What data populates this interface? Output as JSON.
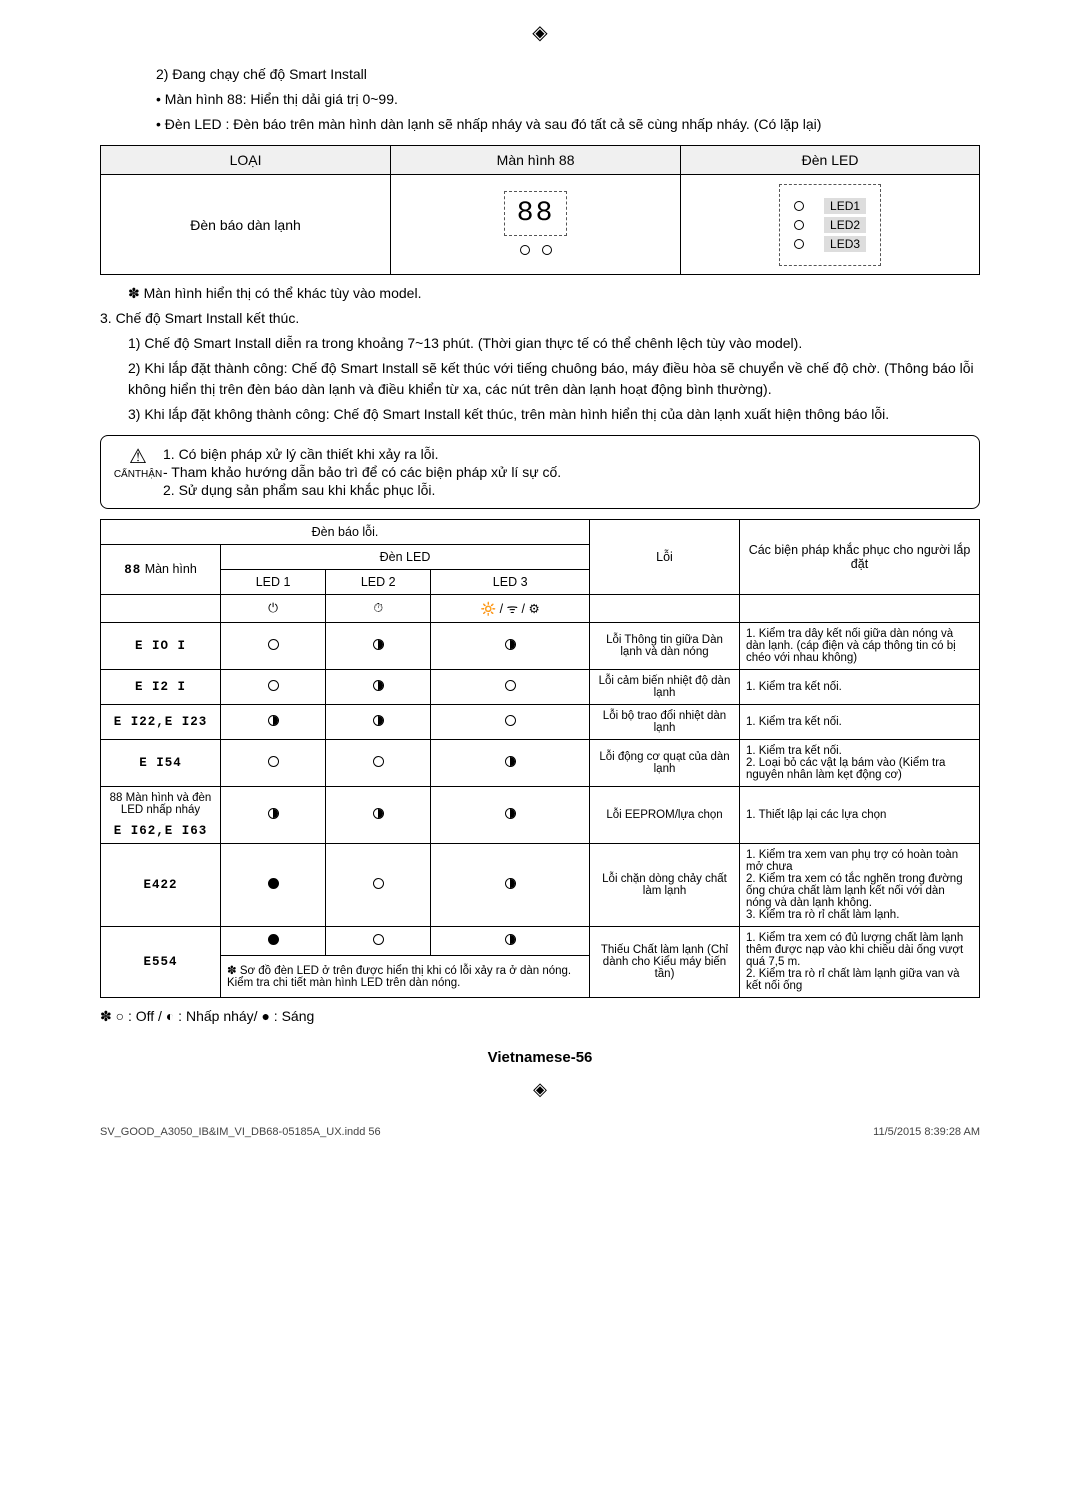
{
  "intro": {
    "item2": "2)  Đang chạy chế độ Smart Install",
    "bullet1": "•  Màn hình 88: Hiển thị dải giá trị 0~99.",
    "bullet2": "•  Đèn LED : Đèn báo trên màn hình dàn lạnh sẽ nhấp nháy và sau đó tất cả sẽ cùng nhấp nháy. (Có lặp lại)"
  },
  "type_table": {
    "headers": {
      "type": "LOẠI",
      "disp": "Màn hình 88",
      "led": "Đèn LED"
    },
    "row_label": "Đèn báo dàn lạnh",
    "seg_text": "88",
    "led1": "LED1",
    "led2": "LED2",
    "led3": "LED3"
  },
  "note_model": "✽  Màn hình hiển thị có thể khác tùy vào model.",
  "step3": {
    "title": "3.  Chế độ Smart Install kết thúc.",
    "p1": "1)  Chế độ Smart Install diễn ra trong khoảng 7~13 phút. (Thời gian thực tế có thể chênh lệch tùy vào model).",
    "p2": "2)  Khi lắp đặt thành công: Chế độ Smart Install sẽ kết thúc với tiếng chuông báo, máy điều hòa sẽ chuyển về chế độ chờ. (Thông báo lỗi không hiển thị trên đèn báo dàn lạnh và điều khiển từ xa, các nút trên dàn lạnh hoạt động bình thường).",
    "p3": "3)  Khi lắp đặt không thành công: Chế độ Smart Install kết thúc, trên màn hình hiển thị của dàn lạnh xuất hiện thông báo lỗi."
  },
  "caution": {
    "label": "CẨNTHẬN",
    "l1": "1. Có biện pháp xử lý cần thiết khi xảy ra lỗi.",
    "l2": "   - Tham khảo hướng dẫn bảo trì để có các biện pháp xử lí sự cố.",
    "l3": "2. Sử dụng sản phẩm sau khi khắc phục lỗi."
  },
  "err": {
    "hdr_error_lamp": "Đèn báo lỗi.",
    "hdr_error": "Lỗi",
    "hdr_action": "Các biện pháp khắc phục cho người lắp đặt",
    "hdr_led": "Đèn LED",
    "hdr_88": "Màn hình",
    "led1": "LED 1",
    "led2": "LED 2",
    "led3": "LED 3",
    "pwr_icon": "⏻",
    "timer_icon": "⏱",
    "wifi_icon": "🔆 / ᯤ / ⚙",
    "rows": [
      {
        "code": "E IO I",
        "l1": "off",
        "l2": "half",
        "l3": "half",
        "err": "Lỗi Thông tin giữa Dàn lạnh và dàn nóng",
        "act": "1. Kiểm tra dây kết nối giữa dàn nóng và dàn lạnh. (cáp điện và cáp thông tin có bị chéo với nhau không)"
      },
      {
        "code": "E I2 I",
        "l1": "off",
        "l2": "half",
        "l3": "off",
        "err": "Lỗi cảm biến nhiệt độ dàn lạnh",
        "act": "1. Kiểm tra kết nối."
      },
      {
        "code": "E I22,E I23",
        "l1": "half",
        "l2": "half",
        "l3": "off",
        "err": "Lỗi bộ trao đổi nhiệt dàn lạnh",
        "act": "1. Kiểm tra kết nối."
      },
      {
        "code": "E I54",
        "l1": "off",
        "l2": "off",
        "l3": "half",
        "err": "Lỗi động cơ quạt của dàn lạnh",
        "act": "1. Kiểm tra kết nối.\n2. Loại bỏ các vật lạ bám vào (Kiểm tra nguyên nhân làm kẹt động cơ)"
      },
      {
        "code": "E I62,E I63",
        "code_top": "88 Màn hình và đèn LED nhấp nháy",
        "l1": "half",
        "l2": "half",
        "l3": "half",
        "err": "Lỗi EEPROM/lựa chọn",
        "act": "1. Thiết lập lại các lựa chọn"
      },
      {
        "code": "E422",
        "l1": "on",
        "l2": "off",
        "l3": "half",
        "err": "Lỗi chặn dòng chảy chất làm lạnh",
        "act": "1. Kiểm tra xem van phụ trợ có hoàn toàn mở chưa\n2. Kiểm tra xem có tắc nghẽn trong đường ống chứa chất làm lạnh kết nối với dàn nóng và dàn lạnh không.\n3. Kiểm tra rò rỉ chất làm lạnh."
      },
      {
        "code": "E554",
        "l1": "on",
        "l2": "off",
        "l3": "half",
        "note": "✽ Sơ đồ đèn LED ở trên được hiển thị khi có lỗi xảy ra ở dàn nóng.\nKiểm tra chi tiết màn hình LED trên dàn nóng.",
        "err": "Thiếu Chất làm lạnh (Chỉ dành cho Kiểu máy biến tần)",
        "act": "1. Kiểm tra xem có đủ lượng chất làm lạnh thêm được nạp vào khi chiều dài ống vượt quá 7,5 m.\n2. Kiểm tra rò rỉ chất làm lạnh giữa van và kết nối ống"
      }
    ]
  },
  "legend": "✽  ○ : Off /  ◐ : Nhấp nháy/  ● : Sáng",
  "footer_page": "Vietnamese-56",
  "doc_footer": {
    "file": "SV_GOOD_A3050_IB&IM_VI_DB68-05185A_UX.indd   56",
    "ts": "11/5/2015   8:39:28 AM"
  }
}
